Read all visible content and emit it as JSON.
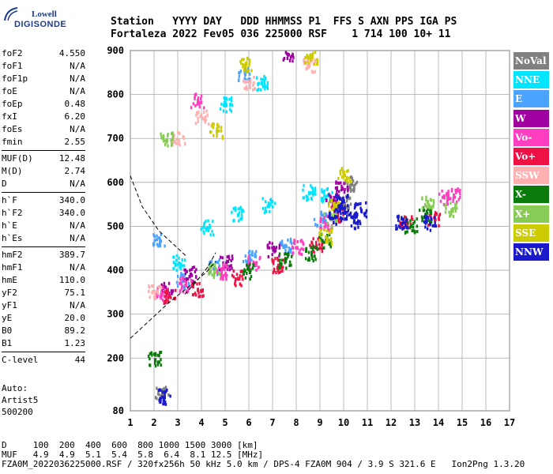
{
  "logo": {
    "line1": "Lowell",
    "line2": "DIGISONDE"
  },
  "header": {
    "line1": "Station   YYYY DAY   DDD HHMMSS P1  FFS S AXN PPS IGA PS",
    "line2": "Fortaleza 2022 Fev05 036 225000 RSF    1 714 100 10+ 11"
  },
  "params": {
    "group1": [
      {
        "k": "foF2",
        "v": "4.550"
      },
      {
        "k": "foF1",
        "v": "N/A"
      },
      {
        "k": "foF1p",
        "v": "N/A"
      },
      {
        "k": "foE",
        "v": "N/A"
      },
      {
        "k": "foEp",
        "v": "0.48"
      },
      {
        "k": "fxI",
        "v": "6.20"
      },
      {
        "k": "foEs",
        "v": "N/A"
      },
      {
        "k": "fmin",
        "v": "2.55"
      }
    ],
    "group2": [
      {
        "k": "MUF(D)",
        "v": "12.48"
      },
      {
        "k": "M(D)",
        "v": "2.74"
      },
      {
        "k": "D",
        "v": "N/A"
      }
    ],
    "group3": [
      {
        "k": "h`F",
        "v": "340.0"
      },
      {
        "k": "h`F2",
        "v": "340.0"
      },
      {
        "k": "h`E",
        "v": "N/A"
      },
      {
        "k": "h`Es",
        "v": "N/A"
      }
    ],
    "group4": [
      {
        "k": "hmF2",
        "v": "389.7"
      },
      {
        "k": "hmF1",
        "v": "N/A"
      },
      {
        "k": "hmE",
        "v": "110.0"
      },
      {
        "k": "yF2",
        "v": "75.1"
      },
      {
        "k": "yF1",
        "v": "N/A"
      },
      {
        "k": "yE",
        "v": "20.0"
      },
      {
        "k": "B0",
        "v": "89.2"
      },
      {
        "k": "B1",
        "v": "1.23"
      }
    ],
    "group5": [
      {
        "k": "C-level",
        "v": "44"
      }
    ]
  },
  "auto": {
    "line1": "Auto:",
    "line2": "Artist5",
    "line3": "500200"
  },
  "legend": [
    {
      "label": "NoVal",
      "bg": "#808080",
      "fg": "#ffffff"
    },
    {
      "label": "NNE",
      "bg": "#00e5ff",
      "fg": "#ffffff"
    },
    {
      "label": "E",
      "bg": "#4aa3ff",
      "fg": "#ffffff"
    },
    {
      "label": "W",
      "bg": "#a000a0",
      "fg": "#ffffff"
    },
    {
      "label": "Vo-",
      "bg": "#ff3fc0",
      "fg": "#ffffff"
    },
    {
      "label": "Vo+",
      "bg": "#ee1144",
      "fg": "#ffffff"
    },
    {
      "label": "SSW",
      "bg": "#ffb0b0",
      "fg": "#ffffff"
    },
    {
      "label": "X-",
      "bg": "#0a7a0a",
      "fg": "#ffffff"
    },
    {
      "label": "X+",
      "bg": "#88cc55",
      "fg": "#ffffff"
    },
    {
      "label": "SSE",
      "bg": "#cccc00",
      "fg": "#ffffff"
    },
    {
      "label": "NNW",
      "bg": "#1a1acc",
      "fg": "#ffffff"
    }
  ],
  "bottom": {
    "line1": "D     100  200  400  600  800 1000 1500 3000 [km]",
    "line2": "MUF   4.9  4.9  5.1  5.4  5.8  6.4  8.1 12.5 [MHz]",
    "line3": "FZA0M_2022036225000.RSF / 320fx256h 50 kHz 5.0 km / DPS-4 FZA0M 904 / 3.9 S 321.6 E   Ion2Png 1.3.20"
  },
  "chart_data": {
    "type": "scatter",
    "xlim": [
      1,
      17
    ],
    "ylim": [
      80,
      900
    ],
    "x_ticks": [
      1,
      2,
      3,
      4,
      5,
      6,
      7,
      8,
      9,
      10,
      11,
      12,
      13,
      14,
      15,
      16,
      17
    ],
    "y_ticks": [
      80,
      200,
      300,
      400,
      500,
      600,
      700,
      800,
      900
    ],
    "grid": true,
    "series": [
      {
        "name": "NoVal",
        "color": "#808080",
        "points": [
          [
            10.0,
            555
          ],
          [
            10.3,
            600
          ],
          [
            2.3,
            120
          ]
        ]
      },
      {
        "name": "NNE",
        "color": "#00e5ff",
        "points": [
          [
            3.0,
            420
          ],
          [
            4.2,
            500
          ],
          [
            5.5,
            530
          ],
          [
            6.8,
            550
          ],
          [
            8.5,
            580
          ],
          [
            9.3,
            575
          ],
          [
            5.0,
            780
          ],
          [
            6.5,
            830
          ]
        ]
      },
      {
        "name": "E",
        "color": "#4aa3ff",
        "points": [
          [
            3.2,
            380
          ],
          [
            4.5,
            410
          ],
          [
            6.0,
            430
          ],
          [
            7.5,
            460
          ],
          [
            9.0,
            520
          ],
          [
            2.2,
            470
          ],
          [
            5.8,
            850
          ]
        ]
      },
      {
        "name": "W",
        "color": "#a000a0",
        "points": [
          [
            2.5,
            360
          ],
          [
            3.5,
            395
          ],
          [
            5.0,
            420
          ],
          [
            7.0,
            450
          ],
          [
            9.5,
            560
          ],
          [
            9.9,
            590
          ],
          [
            7.6,
            895
          ]
        ]
      },
      {
        "name": "Vo-",
        "color": "#ff3fc0",
        "points": [
          [
            2.3,
            350
          ],
          [
            3.3,
            370
          ],
          [
            4.8,
            400
          ],
          [
            6.2,
            420
          ],
          [
            8.0,
            455
          ],
          [
            9.2,
            510
          ],
          [
            14.2,
            570
          ],
          [
            14.6,
            575
          ],
          [
            3.8,
            790
          ]
        ]
      },
      {
        "name": "Vo+",
        "color": "#ee1144",
        "points": [
          [
            2.6,
            345
          ],
          [
            3.8,
            360
          ],
          [
            5.5,
            385
          ],
          [
            7.2,
            415
          ],
          [
            8.8,
            460
          ],
          [
            9.7,
            530
          ],
          [
            12.6,
            510
          ],
          [
            13.8,
            520
          ]
        ]
      },
      {
        "name": "SSW",
        "color": "#ffb0b0",
        "points": [
          [
            2.0,
            355
          ],
          [
            3.0,
            700
          ],
          [
            4.0,
            750
          ],
          [
            6.0,
            830
          ],
          [
            8.5,
            870
          ]
        ]
      },
      {
        "name": "X-",
        "color": "#0a7a0a",
        "points": [
          [
            6.0,
            400
          ],
          [
            7.5,
            425
          ],
          [
            8.6,
            440
          ],
          [
            9.2,
            470
          ],
          [
            12.8,
            505
          ],
          [
            13.4,
            530
          ],
          [
            2.0,
            200
          ]
        ]
      },
      {
        "name": "X+",
        "color": "#88cc55",
        "points": [
          [
            4.5,
            400
          ],
          [
            9.4,
            520
          ],
          [
            13.5,
            560
          ],
          [
            14.5,
            540
          ],
          [
            2.5,
            700
          ]
        ]
      },
      {
        "name": "SSE",
        "color": "#cccc00",
        "points": [
          [
            9.6,
            550
          ],
          [
            10.0,
            620
          ],
          [
            9.2,
            480
          ],
          [
            4.6,
            720
          ],
          [
            5.8,
            870
          ],
          [
            8.6,
            890
          ]
        ]
      },
      {
        "name": "NNW",
        "color": "#1a1acc",
        "points": [
          [
            9.6,
            525
          ],
          [
            10.0,
            535
          ],
          [
            10.4,
            515
          ],
          [
            9.9,
            560
          ],
          [
            10.7,
            540
          ],
          [
            12.4,
            510
          ],
          [
            13.6,
            510
          ],
          [
            2.4,
            115
          ]
        ]
      }
    ]
  }
}
